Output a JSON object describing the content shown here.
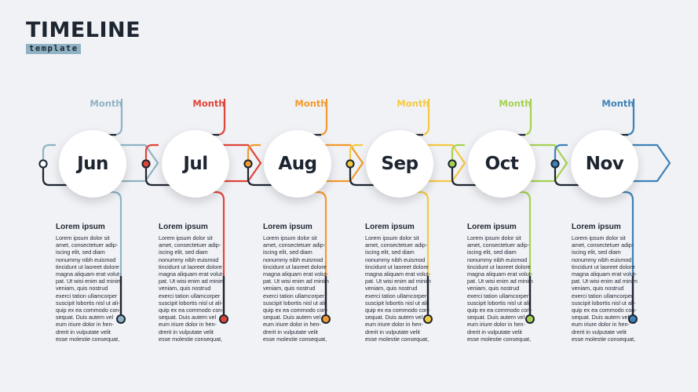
{
  "header": {
    "title": "TIMELINE",
    "subtitle": "template"
  },
  "items": [
    {
      "label": "Month",
      "month": "Jun",
      "color": "#8fb3c4",
      "heading": "Lorem ipsum",
      "body": "Lorem ipsum dolor sit\namet, consectetuer adip-\niscing elit, sed diam\nnonummy nibh euismod\ntincidunt ut laoreet dolore\nmagna aliquam erat volut-\npat. Ut wisi enim ad minim\nveniam, quis nostrud\nexerci tation ullamcorper\nsuscipit lobortis nisl ut ali-\nquip ex ea commodo con-\nsequat. Duis autem vel\neum iriure dolor in hen-\ndrerit in vulputate velit\nesse molestie consequat,"
    },
    {
      "label": "Month",
      "month": "Jul",
      "color": "#e0453a",
      "heading": "Lorem ipsum",
      "body": "Lorem ipsum dolor sit\namet, consectetuer adip-\niscing elit, sed diam\nnonummy nibh euismod\ntincidunt ut laoreet dolore\nmagna aliquam erat volut-\npat. Ut wisi enim ad minim\nveniam, quis nostrud\nexerci tation ullamcorper\nsuscipit lobortis nisl ut ali-\nquip ex ea commodo con-\nsequat. Duis autem vel\neum iriure dolor in hen-\ndrerit in vulputate velit\nesse molestie consequat,"
    },
    {
      "label": "Month",
      "month": "Aug",
      "color": "#f29a2e",
      "heading": "Lorem ipsum",
      "body": "Lorem ipsum dolor sit\namet, consectetuer adip-\niscing elit, sed diam\nnonummy nibh euismod\ntincidunt ut laoreet dolore\nmagna aliquam erat volut-\npat. Ut wisi enim ad minim\nveniam, quis nostrud\nexerci tation ullamcorper\nsuscipit lobortis nisl ut ali-\nquip ex ea commodo con-\nsequat. Duis autem vel\neum iriure dolor in hen-\ndrerit in vulputate velit\nesse molestie consequat,"
    },
    {
      "label": "Month",
      "month": "Sep",
      "color": "#f5c842",
      "heading": "Lorem ipsum",
      "body": "Lorem ipsum dolor sit\namet, consectetuer adip-\niscing elit, sed diam\nnonummy nibh euismod\ntincidunt ut laoreet dolore\nmagna aliquam erat volut-\npat. Ut wisi enim ad minim\nveniam, quis nostrud\nexerci tation ullamcorper\nsuscipit lobortis nisl ut ali-\nquip ex ea commodo con-\nsequat. Duis autem vel\neum iriure dolor in hen-\ndrerit in vulputate velit\nesse molestie consequat,"
    },
    {
      "label": "Month",
      "month": "Oct",
      "color": "#a6d152",
      "heading": "Lorem ipsum",
      "body": "Lorem ipsum dolor sit\namet, consectetuer adip-\niscing elit, sed diam\nnonummy nibh euismod\ntincidunt ut laoreet dolore\nmagna aliquam erat volut-\npat. Ut wisi enim ad minim\nveniam, quis nostrud\nexerci tation ullamcorper\nsuscipit lobortis nisl ut ali-\nquip ex ea commodo con-\nsequat. Duis autem vel\neum iriure dolor in hen-\ndrerit in vulputate velit\nesse molestie consequat,"
    },
    {
      "label": "Month",
      "month": "Nov",
      "color": "#3d82b8",
      "heading": "Lorem ipsum",
      "body": "Lorem ipsum dolor sit\namet, consectetuer adip-\niscing elit, sed diam\nnonummy nibh euismod\ntincidunt ut laoreet dolore\nmagna aliquam erat volut-\npat. Ut wisi enim ad minim\nveniam, quis nostrud\nexerci tation ullamcorper\nsuscipit lobortis nisl ut ali-\nquip ex ea commodo con-\nsequat. Duis autem vel\neum iriure dolor in hen-\ndrerit in vulputate velit\nesse molestie consequat,"
    }
  ]
}
